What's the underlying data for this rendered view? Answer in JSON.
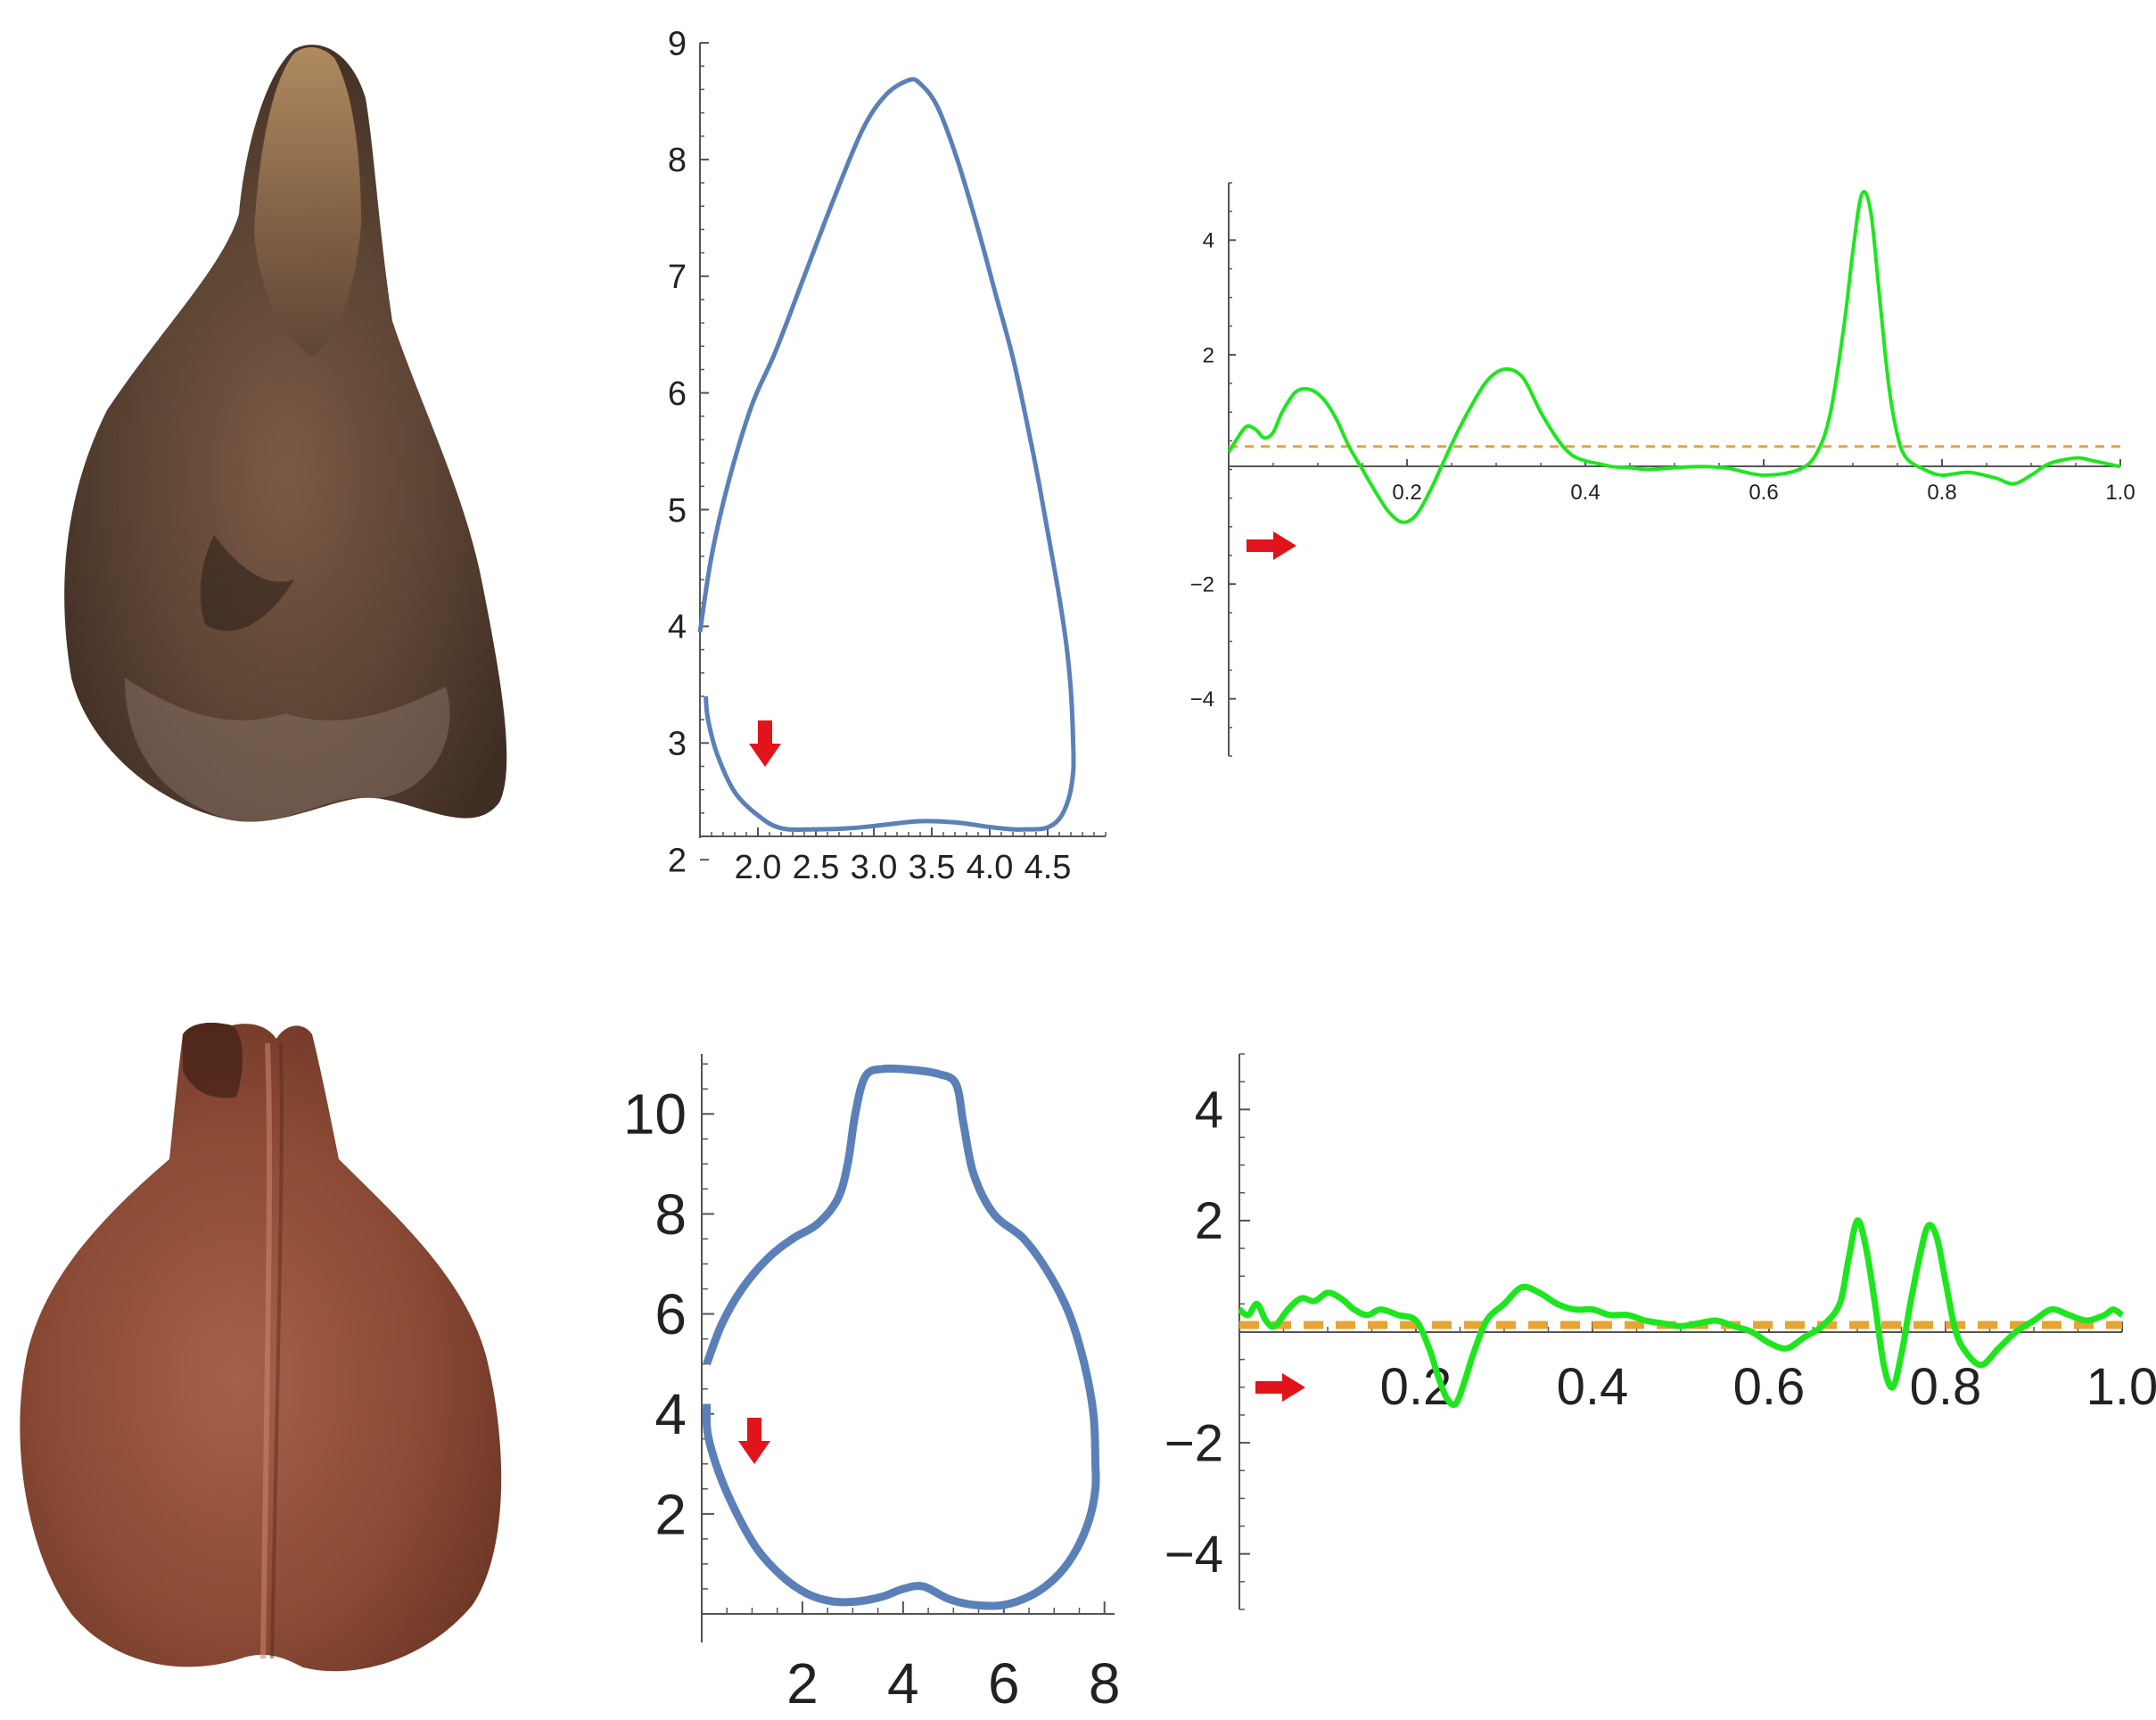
{
  "colors": {
    "outline": "#5b80b8",
    "curvature": "#1ee61e",
    "threshold": "#e6a531",
    "arrow": "#e2141b",
    "axis": "#555555",
    "seed_top_light": "#a98467",
    "seed_top_dark": "#4e3a2c",
    "seed_bottom_light": "#9b5a43",
    "seed_bottom_dark": "#5c2c1d"
  },
  "icons": {
    "outline_arrow": "arrow-down-icon",
    "curvature_arrow": "arrow-right-icon"
  },
  "chart_data": [
    {
      "type": "line",
      "xlim": [
        1.5,
        5.0
      ],
      "ylim": [
        2.2,
        9.0
      ],
      "xticks": [
        2.0,
        2.5,
        3.0,
        3.5,
        4.0,
        4.5
      ],
      "xtick_labels": [
        "2.0",
        "2.5",
        "3.0",
        "3.5",
        "4.0",
        "4.5"
      ],
      "yticks": [
        2,
        3,
        4,
        5,
        6,
        7,
        8,
        9
      ],
      "ytick_labels": [
        "2",
        "3",
        "4",
        "5",
        "6",
        "7",
        "8",
        "9"
      ],
      "series": [
        {
          "x": [
            1.5,
            1.6,
            1.75,
            1.95,
            2.15,
            2.4,
            2.65,
            2.9,
            3.1,
            3.3,
            3.4,
            3.55,
            3.72,
            3.9,
            4.05,
            4.2,
            4.32,
            4.43,
            4.52,
            4.6,
            4.66,
            4.7,
            4.72,
            4.72,
            4.68,
            4.6,
            4.48,
            4.32,
            4.2,
            4.0,
            3.7,
            3.4,
            3.1,
            2.8,
            2.5,
            2.2,
            2.0,
            1.8,
            1.65,
            1.57,
            1.55
          ],
          "y": [
            3.95,
            4.6,
            5.25,
            5.9,
            6.35,
            7.0,
            7.65,
            8.25,
            8.55,
            8.68,
            8.65,
            8.45,
            8.0,
            7.4,
            6.85,
            6.3,
            5.75,
            5.2,
            4.7,
            4.25,
            3.85,
            3.45,
            3.0,
            2.75,
            2.52,
            2.35,
            2.27,
            2.26,
            2.26,
            2.28,
            2.32,
            2.33,
            2.3,
            2.27,
            2.26,
            2.27,
            2.38,
            2.58,
            2.9,
            3.2,
            3.4
          ]
        }
      ],
      "annotation": "arrow-down"
    },
    {
      "type": "line",
      "xlim": [
        0.0,
        1.0
      ],
      "ylim": [
        -5.0,
        5.0
      ],
      "xticks": [
        0.2,
        0.4,
        0.6,
        0.8,
        1.0
      ],
      "xtick_labels": [
        "0.2",
        "0.4",
        "0.6",
        "0.8",
        "1.0"
      ],
      "yticks": [
        -4,
        -2,
        2,
        4
      ],
      "ytick_labels": [
        "−4",
        "−2",
        "2",
        "4"
      ],
      "series": [
        {
          "x": [
            0.0,
            0.01,
            0.02,
            0.03,
            0.04,
            0.05,
            0.06,
            0.075,
            0.09,
            0.105,
            0.12,
            0.135,
            0.15,
            0.165,
            0.18,
            0.195,
            0.21,
            0.225,
            0.24,
            0.255,
            0.27,
            0.29,
            0.31,
            0.33,
            0.35,
            0.37,
            0.385,
            0.4,
            0.415,
            0.43,
            0.45,
            0.47,
            0.5,
            0.53,
            0.56,
            0.6,
            0.64,
            0.66,
            0.675,
            0.69,
            0.7,
            0.71,
            0.72,
            0.73,
            0.74,
            0.75,
            0.76,
            0.78,
            0.8,
            0.83,
            0.86,
            0.88,
            0.9,
            0.92,
            0.95,
            0.97,
            1.0
          ],
          "y": [
            0.3,
            0.55,
            0.75,
            0.7,
            0.55,
            0.65,
            1.0,
            1.35,
            1.4,
            1.25,
            0.9,
            0.4,
            0.0,
            -0.4,
            -0.75,
            -0.92,
            -0.8,
            -0.4,
            0.1,
            0.6,
            1.05,
            1.55,
            1.75,
            1.6,
            1.0,
            0.5,
            0.25,
            0.15,
            0.1,
            0.05,
            0.03,
            0.0,
            0.03,
            0.05,
            0.02,
            -0.1,
            0.0,
            0.3,
            1.0,
            2.5,
            3.8,
            4.8,
            4.5,
            3.0,
            1.5,
            0.6,
            0.2,
            0.0,
            -0.1,
            -0.05,
            -0.15,
            -0.25,
            -0.1,
            0.1,
            0.2,
            0.15,
            0.05
          ]
        },
        {
          "x": [
            0.0,
            1.0
          ],
          "y": [
            0.4,
            0.4
          ],
          "style": "dashed"
        }
      ],
      "annotation": "arrow-right"
    },
    {
      "type": "line",
      "xlim": [
        0.0,
        8.2
      ],
      "ylim": [
        0.0,
        11.2
      ],
      "xticks": [
        2,
        4,
        6,
        8
      ],
      "xtick_labels": [
        "2",
        "4",
        "6",
        "8"
      ],
      "yticks": [
        2,
        4,
        6,
        8,
        10
      ],
      "ytick_labels": [
        "2",
        "4",
        "6",
        "8",
        "10"
      ],
      "series": [
        {
          "x": [
            0.1,
            0.4,
            0.8,
            1.3,
            1.8,
            2.3,
            2.7,
            2.9,
            3.05,
            3.25,
            3.6,
            4.2,
            4.7,
            5.05,
            5.2,
            5.4,
            5.8,
            6.4,
            6.9,
            7.3,
            7.6,
            7.78,
            7.82,
            7.82,
            7.7,
            7.45,
            7.1,
            6.6,
            6.0,
            5.4,
            4.9,
            4.4,
            4.0,
            3.6,
            3.1,
            2.6,
            2.1,
            1.6,
            1.1,
            0.7,
            0.35,
            0.12,
            0.1
          ],
          "y": [
            5.0,
            5.8,
            6.5,
            7.1,
            7.5,
            7.8,
            8.3,
            9.0,
            10.0,
            10.75,
            10.9,
            10.88,
            10.8,
            10.6,
            9.8,
            8.8,
            8.0,
            7.5,
            6.8,
            6.0,
            5.0,
            4.0,
            3.0,
            2.5,
            1.9,
            1.3,
            0.8,
            0.4,
            0.18,
            0.18,
            0.3,
            0.55,
            0.5,
            0.35,
            0.25,
            0.25,
            0.4,
            0.75,
            1.3,
            2.0,
            2.8,
            3.6,
            4.2
          ]
        }
      ],
      "annotation": "arrow-down"
    },
    {
      "type": "line",
      "xlim": [
        0.0,
        1.0
      ],
      "ylim": [
        -5.0,
        5.0
      ],
      "xticks": [
        0.2,
        0.4,
        0.6,
        0.8,
        1.0
      ],
      "xtick_labels": [
        "0.2",
        "0.4",
        "0.6",
        "0.8",
        "1.0"
      ],
      "yticks": [
        -4,
        -2,
        2,
        4
      ],
      "ytick_labels": [
        "−4",
        "−2",
        "2",
        "4"
      ],
      "series": [
        {
          "x": [
            0.0,
            0.01,
            0.02,
            0.03,
            0.04,
            0.055,
            0.07,
            0.085,
            0.1,
            0.115,
            0.13,
            0.145,
            0.16,
            0.18,
            0.2,
            0.215,
            0.225,
            0.235,
            0.245,
            0.255,
            0.265,
            0.28,
            0.3,
            0.32,
            0.34,
            0.36,
            0.38,
            0.4,
            0.42,
            0.44,
            0.46,
            0.48,
            0.5,
            0.52,
            0.54,
            0.56,
            0.58,
            0.6,
            0.62,
            0.64,
            0.66,
            0.68,
            0.69,
            0.7,
            0.71,
            0.72,
            0.73,
            0.74,
            0.75,
            0.76,
            0.77,
            0.78,
            0.79,
            0.8,
            0.81,
            0.82,
            0.84,
            0.86,
            0.88,
            0.9,
            0.92,
            0.94,
            0.96,
            0.98,
            0.99,
            1.0
          ],
          "y": [
            0.4,
            0.3,
            0.5,
            0.2,
            0.1,
            0.4,
            0.6,
            0.55,
            0.7,
            0.6,
            0.4,
            0.3,
            0.4,
            0.3,
            0.2,
            -0.3,
            -0.8,
            -1.2,
            -1.3,
            -0.9,
            -0.4,
            0.2,
            0.5,
            0.8,
            0.7,
            0.5,
            0.4,
            0.4,
            0.3,
            0.3,
            0.2,
            0.15,
            0.1,
            0.15,
            0.2,
            0.1,
            0.0,
            -0.2,
            -0.3,
            -0.1,
            0.1,
            0.5,
            1.3,
            2.0,
            1.5,
            0.5,
            -0.6,
            -1.0,
            -0.4,
            0.5,
            1.3,
            1.9,
            1.7,
            0.9,
            0.1,
            -0.3,
            -0.6,
            -0.3,
            0.0,
            0.2,
            0.4,
            0.3,
            0.2,
            0.3,
            0.4,
            0.3
          ]
        },
        {
          "x": [
            0.0,
            1.0
          ],
          "y": [
            0.12,
            0.12
          ],
          "style": "dashed"
        }
      ],
      "annotation": "arrow-right"
    }
  ]
}
